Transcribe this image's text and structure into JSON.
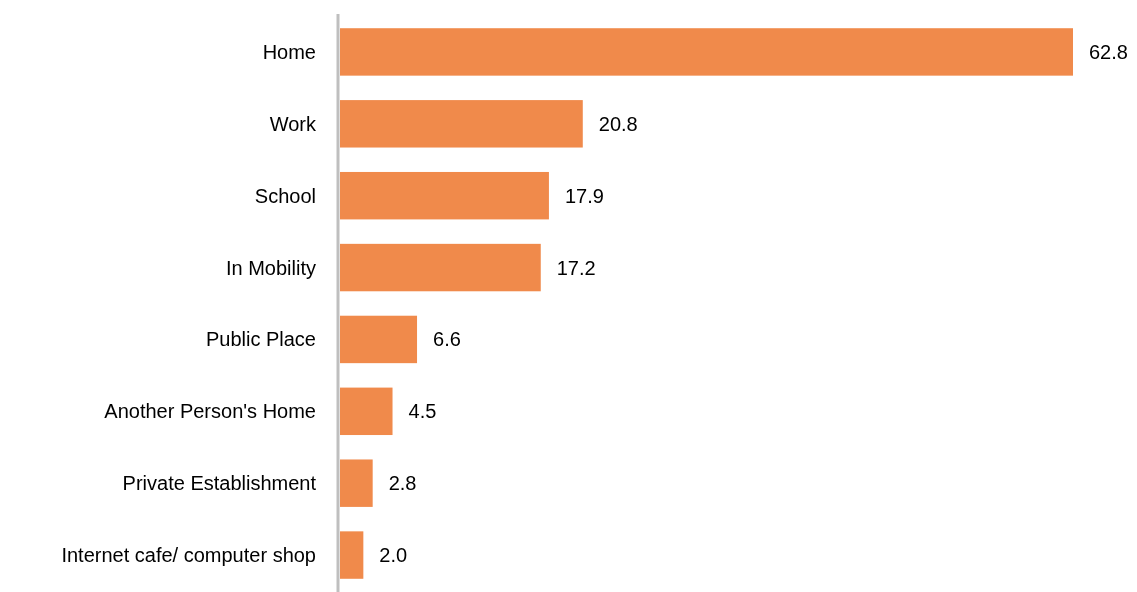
{
  "chart_data": {
    "type": "bar",
    "orientation": "horizontal",
    "categories": [
      "Home",
      "Work",
      "School",
      "In Mobility",
      "Public Place",
      "Another Person's Home",
      "Private Establishment",
      "Internet cafe/ computer shop"
    ],
    "values": [
      62.8,
      20.8,
      17.9,
      17.2,
      6.6,
      4.5,
      2.8,
      2.0
    ],
    "value_labels": [
      "62.8",
      "20.8",
      "17.9",
      "17.2",
      "6.6",
      "4.5",
      "2.8",
      "2.0"
    ],
    "color": "#f08a4b"
  }
}
